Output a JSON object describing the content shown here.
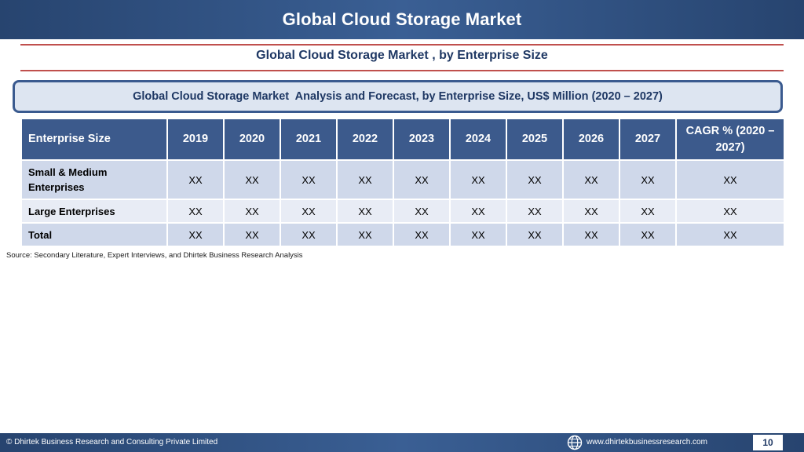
{
  "header": {
    "title": "Global Cloud Storage Market"
  },
  "subtitle": "Global Cloud Storage Market , by Enterprise Size",
  "analysis_title": "Global Cloud Storage Market  Analysis and Forecast, by Enterprise Size, US$ Million (2020 – 2027)",
  "table": {
    "columns": [
      "Enterprise Size",
      "2019",
      "2020",
      "2021",
      "2022",
      "2023",
      "2024",
      "2025",
      "2026",
      "2027",
      "CAGR % (2020 – 2027)"
    ],
    "rows": [
      [
        "Small & Medium Enterprises",
        "XX",
        "XX",
        "XX",
        "XX",
        "XX",
        "XX",
        "XX",
        "XX",
        "XX",
        "XX"
      ],
      [
        "Large Enterprises",
        "XX",
        "XX",
        "XX",
        "XX",
        "XX",
        "XX",
        "XX",
        "XX",
        "XX",
        "XX"
      ],
      [
        "Total",
        "XX",
        "XX",
        "XX",
        "XX",
        "XX",
        "XX",
        "XX",
        "XX",
        "XX",
        "XX"
      ]
    ]
  },
  "source": "Source: Secondary Literature, Expert Interviews, and Dhirtek Business Research Analysis",
  "footer": {
    "copyright": "© Dhirtek Business Research and Consulting Private Limited",
    "website": "www.dhirtekbusinessresearch.com",
    "page_number": "10",
    "icon": "globe-icon"
  },
  "colors": {
    "brand_navy": "#27446f",
    "table_header": "#3c5a8c",
    "accent_rule": "#c0504d",
    "row_dark": "#cfd8ea",
    "row_light": "#e8ecf5"
  }
}
